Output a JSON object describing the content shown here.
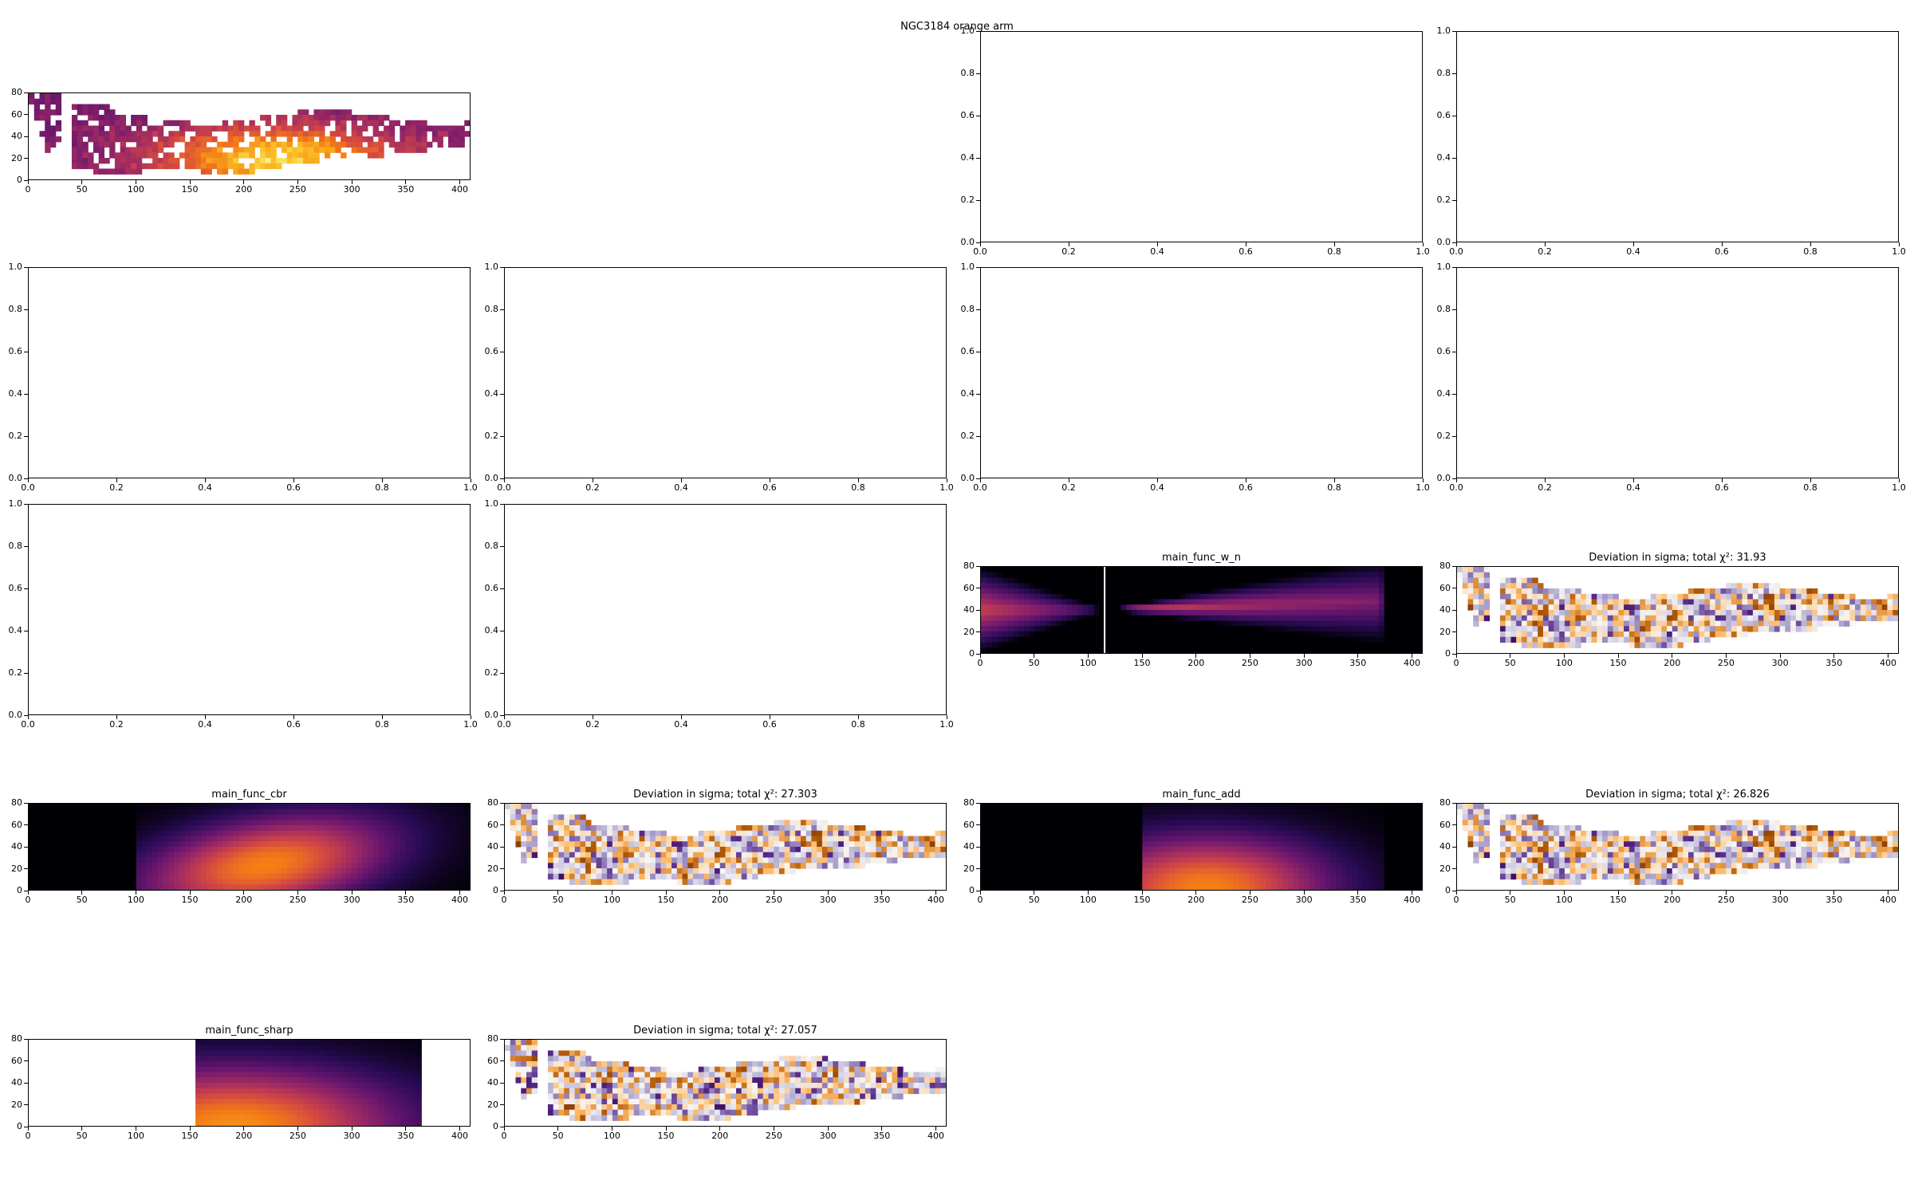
{
  "figure": {
    "suptitle": "NGC3184 orange arm"
  },
  "chart_data": [
    {
      "id": "data_map",
      "type": "heatmap",
      "title": "",
      "colormap": "inferno",
      "xlim": [
        0,
        410
      ],
      "ylim": [
        0,
        80
      ],
      "xticks": [
        "0",
        "50",
        "100",
        "150",
        "200",
        "250",
        "300",
        "350",
        "400"
      ],
      "yticks": [
        "0",
        "20",
        "40",
        "60",
        "80"
      ]
    },
    {
      "id": "empty_r0c2",
      "type": "empty",
      "title": "",
      "xlim": [
        0,
        1
      ],
      "ylim": [
        0,
        1
      ],
      "xticks": [
        "0.0",
        "0.2",
        "0.4",
        "0.6",
        "0.8",
        "1.0"
      ],
      "yticks": [
        "0.0",
        "0.2",
        "0.4",
        "0.6",
        "0.8",
        "1.0"
      ]
    },
    {
      "id": "empty_r0c3",
      "type": "empty",
      "title": "",
      "xlim": [
        0,
        1
      ],
      "ylim": [
        0,
        1
      ],
      "xticks": [
        "0.0",
        "0.2",
        "0.4",
        "0.6",
        "0.8",
        "1.0"
      ],
      "yticks": [
        "0.0",
        "0.2",
        "0.4",
        "0.6",
        "0.8",
        "1.0"
      ]
    },
    {
      "id": "empty_r1c0",
      "type": "empty",
      "title": "",
      "xlim": [
        0,
        1
      ],
      "ylim": [
        0,
        1
      ],
      "xticks": [
        "0.0",
        "0.2",
        "0.4",
        "0.6",
        "0.8",
        "1.0"
      ],
      "yticks": [
        "0.0",
        "0.2",
        "0.4",
        "0.6",
        "0.8",
        "1.0"
      ]
    },
    {
      "id": "empty_r1c1",
      "type": "empty",
      "title": "",
      "xlim": [
        0,
        1
      ],
      "ylim": [
        0,
        1
      ],
      "xticks": [
        "0.0",
        "0.2",
        "0.4",
        "0.6",
        "0.8",
        "1.0"
      ],
      "yticks": [
        "0.0",
        "0.2",
        "0.4",
        "0.6",
        "0.8",
        "1.0"
      ]
    },
    {
      "id": "empty_r1c2",
      "type": "empty",
      "title": "",
      "xlim": [
        0,
        1
      ],
      "ylim": [
        0,
        1
      ],
      "xticks": [
        "0.0",
        "0.2",
        "0.4",
        "0.6",
        "0.8",
        "1.0"
      ],
      "yticks": [
        "0.0",
        "0.2",
        "0.4",
        "0.6",
        "0.8",
        "1.0"
      ]
    },
    {
      "id": "empty_r1c3",
      "type": "empty",
      "title": "",
      "xlim": [
        0,
        1
      ],
      "ylim": [
        0,
        1
      ],
      "xticks": [
        "0.0",
        "0.2",
        "0.4",
        "0.6",
        "0.8",
        "1.0"
      ],
      "yticks": [
        "0.0",
        "0.2",
        "0.4",
        "0.6",
        "0.8",
        "1.0"
      ]
    },
    {
      "id": "empty_r2c0",
      "type": "empty",
      "title": "",
      "xlim": [
        0,
        1
      ],
      "ylim": [
        0,
        1
      ],
      "xticks": [
        "0.0",
        "0.2",
        "0.4",
        "0.6",
        "0.8",
        "1.0"
      ],
      "yticks": [
        "0.0",
        "0.2",
        "0.4",
        "0.6",
        "0.8",
        "1.0"
      ]
    },
    {
      "id": "empty_r2c1",
      "type": "empty",
      "title": "",
      "xlim": [
        0,
        1
      ],
      "ylim": [
        0,
        1
      ],
      "xticks": [
        "0.0",
        "0.2",
        "0.4",
        "0.6",
        "0.8",
        "1.0"
      ],
      "yticks": [
        "0.0",
        "0.2",
        "0.4",
        "0.6",
        "0.8",
        "1.0"
      ]
    },
    {
      "id": "model_w_n",
      "type": "heatmap",
      "title": "main_func_w_n",
      "colormap": "inferno",
      "xlim": [
        0,
        410
      ],
      "ylim": [
        0,
        80
      ],
      "xticks": [
        "0",
        "50",
        "100",
        "150",
        "200",
        "250",
        "300",
        "350",
        "400"
      ],
      "yticks": [
        "0",
        "20",
        "40",
        "60",
        "80"
      ]
    },
    {
      "id": "dev_w_n",
      "type": "heatmap",
      "title": "Deviation in sigma; total χ²: 31.93",
      "colormap": "PuOr",
      "xlim": [
        0,
        410
      ],
      "ylim": [
        0,
        80
      ],
      "xticks": [
        "0",
        "50",
        "100",
        "150",
        "200",
        "250",
        "300",
        "350",
        "400"
      ],
      "yticks": [
        "0",
        "20",
        "40",
        "60",
        "80"
      ]
    },
    {
      "id": "model_cbr",
      "type": "heatmap",
      "title": "main_func_cbr",
      "colormap": "inferno",
      "xlim": [
        0,
        410
      ],
      "ylim": [
        0,
        80
      ],
      "xticks": [
        "0",
        "50",
        "100",
        "150",
        "200",
        "250",
        "300",
        "350",
        "400"
      ],
      "yticks": [
        "0",
        "20",
        "40",
        "60",
        "80"
      ]
    },
    {
      "id": "dev_cbr",
      "type": "heatmap",
      "title": "Deviation in sigma; total χ²: 27.303",
      "colormap": "PuOr",
      "xlim": [
        0,
        410
      ],
      "ylim": [
        0,
        80
      ],
      "xticks": [
        "0",
        "50",
        "100",
        "150",
        "200",
        "250",
        "300",
        "350",
        "400"
      ],
      "yticks": [
        "0",
        "20",
        "40",
        "60",
        "80"
      ]
    },
    {
      "id": "model_add",
      "type": "heatmap",
      "title": "main_func_add",
      "colormap": "inferno",
      "xlim": [
        0,
        410
      ],
      "ylim": [
        0,
        80
      ],
      "xticks": [
        "0",
        "50",
        "100",
        "150",
        "200",
        "250",
        "300",
        "350",
        "400"
      ],
      "yticks": [
        "0",
        "20",
        "40",
        "60",
        "80"
      ]
    },
    {
      "id": "dev_add",
      "type": "heatmap",
      "title": "Deviation in sigma; total χ²: 26.826",
      "colormap": "PuOr",
      "xlim": [
        0,
        410
      ],
      "ylim": [
        0,
        80
      ],
      "xticks": [
        "0",
        "50",
        "100",
        "150",
        "200",
        "250",
        "300",
        "350",
        "400"
      ],
      "yticks": [
        "0",
        "20",
        "40",
        "60",
        "80"
      ]
    },
    {
      "id": "model_sharp",
      "type": "heatmap",
      "title": "main_func_sharp",
      "colormap": "inferno",
      "xlim": [
        0,
        410
      ],
      "ylim": [
        0,
        80
      ],
      "xticks": [
        "0",
        "50",
        "100",
        "150",
        "200",
        "250",
        "300",
        "350",
        "400"
      ],
      "yticks": [
        "0",
        "20",
        "40",
        "60",
        "80"
      ]
    },
    {
      "id": "dev_sharp",
      "type": "heatmap",
      "title": "Deviation in sigma; total χ²: 27.057",
      "colormap": "PuOr",
      "xlim": [
        0,
        410
      ],
      "ylim": [
        0,
        80
      ],
      "xticks": [
        "0",
        "50",
        "100",
        "150",
        "200",
        "250",
        "300",
        "350",
        "400"
      ],
      "yticks": [
        "0",
        "20",
        "40",
        "60",
        "80"
      ]
    }
  ]
}
